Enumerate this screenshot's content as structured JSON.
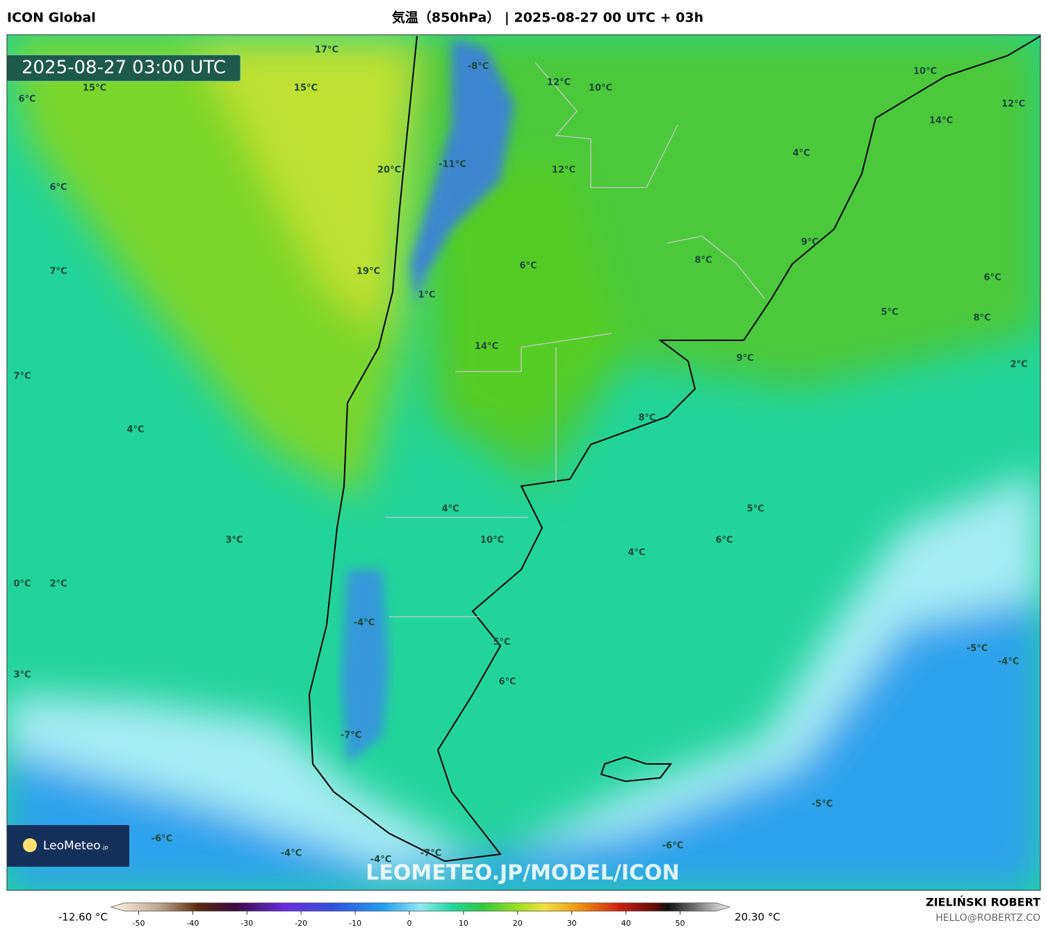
{
  "header": {
    "left_title": "ICON Global",
    "center_title": "気温（850hPa） | 2025-08-27 00 UTC + 03h"
  },
  "timestamp": "2025-08-27 03:00 UTC",
  "labels": [
    "17°C",
    "-8°C",
    "12°C",
    "10°C",
    "10°C",
    "12°C",
    "15°C",
    "15°C",
    "6°C",
    "14°C",
    "4°C",
    "20°C",
    "-11°C",
    "12°C",
    "6°C",
    "9°C",
    "8°C",
    "6°C",
    "19°C",
    "7°C",
    "6°C",
    "1°C",
    "5°C",
    "8°C",
    "14°C",
    "9°C",
    "2°C",
    "7°C",
    "8°C",
    "4°C",
    "4°C",
    "5°C",
    "10°C",
    "3°C",
    "6°C",
    "4°C",
    "0°C",
    "2°C",
    "-4°C",
    "5°C",
    "-5°C",
    "-4°C",
    "3°C",
    "6°C",
    "-7°C",
    "-5°C",
    "-6°C",
    "-6°C",
    "-4°C",
    "-7°C",
    "-4°C"
  ],
  "watermark": "LEOMETEO.JP/MODEL/ICON",
  "logo": {
    "name": "LeoMeteo",
    "suffix": ".jp"
  },
  "colorbar": {
    "min_label": "-12.60 °C",
    "max_label": "20.30 °C",
    "ticks": [
      -50,
      -40,
      -30,
      -20,
      -10,
      0,
      10,
      20,
      30,
      40,
      50
    ]
  },
  "footer": {
    "author": "ZIELIŃSKI ROBERT",
    "email": "HELLO@ROBERTZ.CO"
  }
}
